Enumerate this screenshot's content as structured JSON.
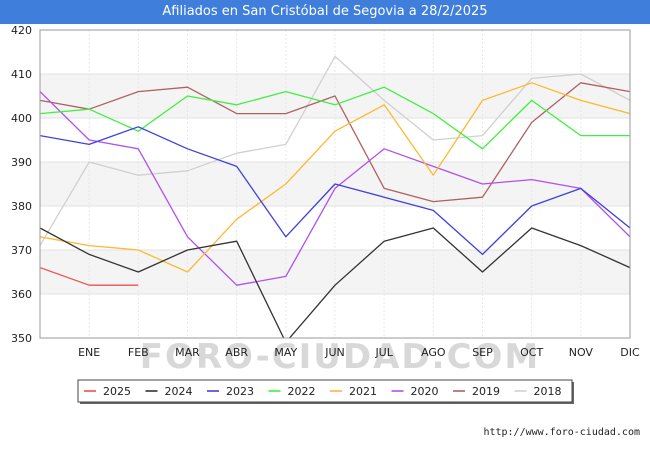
{
  "header": {
    "title": "Afiliados en San Cristóbal de Segovia a 28/2/2025"
  },
  "footer": {
    "source": "http://www.foro-ciudad.com"
  },
  "watermark": "FORO-CIUDAD.COM",
  "chart_data": {
    "type": "line",
    "title": "Afiliados en San Cristóbal de Segovia a 28/2/2025",
    "xlabel": "",
    "ylabel": "",
    "categories": [
      "",
      "ENE",
      "FEB",
      "MAR",
      "ABR",
      "MAY",
      "JUN",
      "JUL",
      "AGO",
      "SEP",
      "OCT",
      "NOV",
      "DIC"
    ],
    "ylim": [
      350,
      420
    ],
    "yticks": [
      350,
      360,
      370,
      380,
      390,
      400,
      410,
      420
    ],
    "grid": true,
    "legend_position": "bottom",
    "series": [
      {
        "name": "2025",
        "color": "#f05050",
        "values": [
          366,
          362,
          362,
          null,
          null,
          null,
          null,
          null,
          null,
          null,
          null,
          null,
          null
        ]
      },
      {
        "name": "2024",
        "color": "#333333",
        "values": [
          375,
          369,
          365,
          370,
          372,
          349,
          362,
          372,
          375,
          365,
          375,
          371,
          366
        ]
      },
      {
        "name": "2023",
        "color": "#4040e0",
        "values": [
          396,
          394,
          398,
          393,
          389,
          373,
          385,
          382,
          379,
          369,
          380,
          384,
          375
        ]
      },
      {
        "name": "2022",
        "color": "#40f040",
        "values": [
          401,
          402,
          397,
          405,
          403,
          406,
          403,
          407,
          401,
          393,
          404,
          396,
          396
        ]
      },
      {
        "name": "2021",
        "color": "#ffb830",
        "values": [
          373,
          371,
          370,
          365,
          377,
          385,
          397,
          403,
          387,
          404,
          408,
          404,
          401
        ]
      },
      {
        "name": "2020",
        "color": "#b050f0",
        "values": [
          406,
          395,
          393,
          373,
          362,
          364,
          384,
          393,
          389,
          385,
          386,
          384,
          373
        ]
      },
      {
        "name": "2019",
        "color": "#b06060",
        "values": [
          404,
          402,
          406,
          407,
          401,
          401,
          405,
          384,
          381,
          382,
          399,
          408,
          406
        ]
      },
      {
        "name": "2018",
        "color": "#d0d0d0",
        "values": [
          371,
          390,
          387,
          388,
          392,
          394,
          414,
          404,
          395,
          396,
          409,
          410,
          404
        ]
      }
    ]
  }
}
